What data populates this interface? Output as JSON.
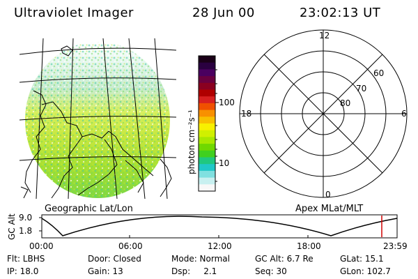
{
  "header": {
    "instrument": "Ultraviolet Imager",
    "date": "28 Jun 00",
    "time": "23:02:13 UT"
  },
  "image_panel": {
    "label": "Geographic Lat/Lon"
  },
  "colorbar": {
    "unit_label": "photon cm⁻²s⁻¹",
    "tick_100": "100",
    "tick_10": "10",
    "colors": [
      "#1a0018",
      "#2a0040",
      "#4a0060",
      "#6a0040",
      "#8a0020",
      "#b00000",
      "#d82020",
      "#f05000",
      "#f89000",
      "#f8c000",
      "#f8f000",
      "#d0f000",
      "#a8e800",
      "#70d800",
      "#40d020",
      "#20c880",
      "#20c8c8",
      "#80e0e0",
      "#c8f0f0",
      "#f8f8f8"
    ]
  },
  "polar": {
    "label": "Apex MLat/MLT",
    "mlt_12": "12",
    "mlt_18": "18",
    "mlt_6": "6",
    "mlt_0": "0",
    "lat_60": "60",
    "lat_70": "70",
    "lat_80": "80"
  },
  "alt_plot": {
    "ylabel": "GC Alt",
    "ytick_top": "9.0",
    "ytick_bottom": "1.8",
    "xticks": [
      "00:00",
      "06:00",
      "12:00",
      "18:00",
      "23:59"
    ]
  },
  "info": {
    "flt": "Flt: LBHS",
    "door": "Door: Closed",
    "mode": "Mode: Normal",
    "gc_alt": "GC Alt: 6.7 Re",
    "glat": "GLat:  15.1",
    "ip": "IP: 18.0",
    "gain": "Gain: 13",
    "dsp": "Dsp:     2.1",
    "seq": "Seq: 30",
    "glon": "GLon: 102.7"
  },
  "marker_color": "#d00000"
}
